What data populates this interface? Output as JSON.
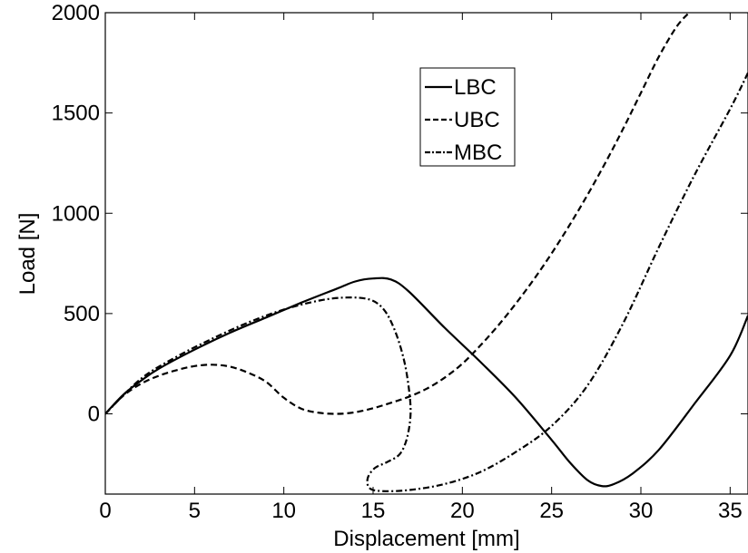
{
  "chart_data": {
    "type": "line",
    "title": "",
    "xlabel": "Displacement [mm]",
    "ylabel": "Load [N]",
    "xlim": [
      0,
      36
    ],
    "ylim": [
      -400,
      2000
    ],
    "xticks": [
      0,
      5,
      10,
      15,
      20,
      25,
      30,
      35
    ],
    "yticks": [
      0,
      500,
      1000,
      1500,
      2000
    ],
    "grid": false,
    "legend_position": "upper-center",
    "series": [
      {
        "name": "LBC",
        "style": "solid",
        "x": [
          0,
          1,
          2,
          3,
          5,
          7,
          9,
          11,
          13,
          14,
          15,
          16,
          17,
          19,
          21,
          23,
          25,
          26,
          27,
          27.8,
          28.5,
          29.5,
          31,
          33,
          35,
          36
        ],
        "y": [
          0,
          95,
          165,
          225,
          320,
          405,
          480,
          555,
          625,
          660,
          675,
          670,
          610,
          430,
          260,
          80,
          -130,
          -240,
          -330,
          -360,
          -350,
          -300,
          -180,
          50,
          290,
          490
        ]
      },
      {
        "name": "UBC",
        "style": "dashed",
        "x": [
          0,
          1,
          2,
          3,
          4,
          5,
          6,
          7,
          8,
          9,
          10,
          11,
          12,
          13,
          14,
          15,
          16,
          17,
          18,
          19,
          20,
          21,
          22,
          23,
          24,
          25,
          26,
          27,
          28,
          29,
          30,
          31,
          32,
          32.7
        ],
        "y": [
          0,
          90,
          150,
          190,
          218,
          238,
          245,
          235,
          205,
          160,
          80,
          25,
          5,
          0,
          8,
          28,
          55,
          85,
          125,
          180,
          250,
          340,
          440,
          550,
          670,
          800,
          940,
          1090,
          1250,
          1420,
          1600,
          1780,
          1930,
          2000
        ]
      },
      {
        "name": "MBC",
        "style": "dash-dot",
        "x": [
          0,
          2,
          4,
          6,
          8,
          10,
          12,
          13.5,
          14.8,
          15.6,
          16.2,
          16.7,
          17,
          17.1,
          16.9,
          16.5,
          15.8,
          15.1,
          14.7,
          14.8,
          15.5,
          17,
          19,
          21,
          23,
          25,
          27,
          29,
          31,
          33,
          35,
          36
        ],
        "y": [
          0,
          175,
          285,
          375,
          455,
          520,
          565,
          580,
          570,
          520,
          420,
          280,
          130,
          0,
          -120,
          -200,
          -240,
          -270,
          -320,
          -370,
          -385,
          -380,
          -350,
          -290,
          -190,
          -60,
          140,
          450,
          830,
          1190,
          1520,
          1700
        ]
      }
    ]
  }
}
